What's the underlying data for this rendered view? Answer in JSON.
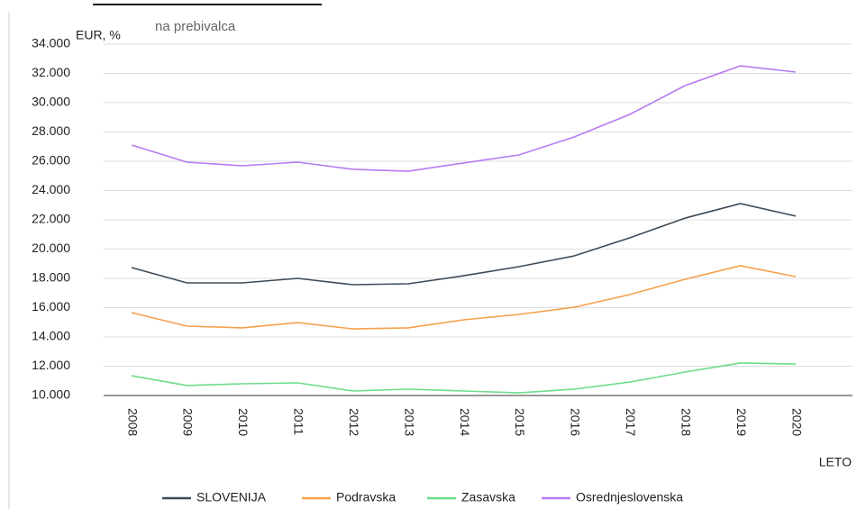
{
  "chart_data": {
    "type": "line",
    "subtitle": "na prebivalca",
    "y_label": "EUR, %",
    "x_label": "LETO",
    "categories": [
      "2008",
      "2009",
      "2010",
      "2011",
      "2012",
      "2013",
      "2014",
      "2015",
      "2016",
      "2017",
      "2018",
      "2019",
      "2020"
    ],
    "series": [
      {
        "name": "SLOVENIJA",
        "color": "#3d4a57",
        "values": [
          18740,
          17690,
          17690,
          18000,
          17570,
          17630,
          18180,
          18800,
          19540,
          20770,
          22120,
          23110,
          22250
        ]
      },
      {
        "name": "Podravska",
        "color": "#f5a04b",
        "values": [
          15660,
          14740,
          14620,
          14980,
          14550,
          14620,
          15170,
          15540,
          16030,
          16890,
          17940,
          18860,
          18120
        ]
      },
      {
        "name": "Zasavska",
        "color": "#6ddc8a",
        "values": [
          11350,
          10680,
          10800,
          10860,
          10310,
          10430,
          10310,
          10180,
          10430,
          10920,
          11600,
          12220,
          12150
        ]
      },
      {
        "name": "Osrednjeslovenska",
        "color": "#b57bf2",
        "values": [
          27110,
          25940,
          25690,
          25940,
          25450,
          25320,
          25880,
          26430,
          27660,
          29200,
          31170,
          32520,
          32090
        ]
      }
    ],
    "ylim": [
      10000,
      34000
    ],
    "yticks": [
      {
        "value": 10000,
        "label": "10.000"
      },
      {
        "value": 12000,
        "label": "12.000"
      },
      {
        "value": 14000,
        "label": "14.000"
      },
      {
        "value": 16000,
        "label": "16.000"
      },
      {
        "value": 18000,
        "label": "18.000"
      },
      {
        "value": 20000,
        "label": "20.000"
      },
      {
        "value": 22000,
        "label": "22.000"
      },
      {
        "value": 24000,
        "label": "24.000"
      },
      {
        "value": 26000,
        "label": "26.000"
      },
      {
        "value": 28000,
        "label": "28.000"
      },
      {
        "value": 30000,
        "label": "30.000"
      },
      {
        "value": 32000,
        "label": "32.000"
      },
      {
        "value": 34000,
        "label": "34.000"
      }
    ],
    "grid": true
  }
}
